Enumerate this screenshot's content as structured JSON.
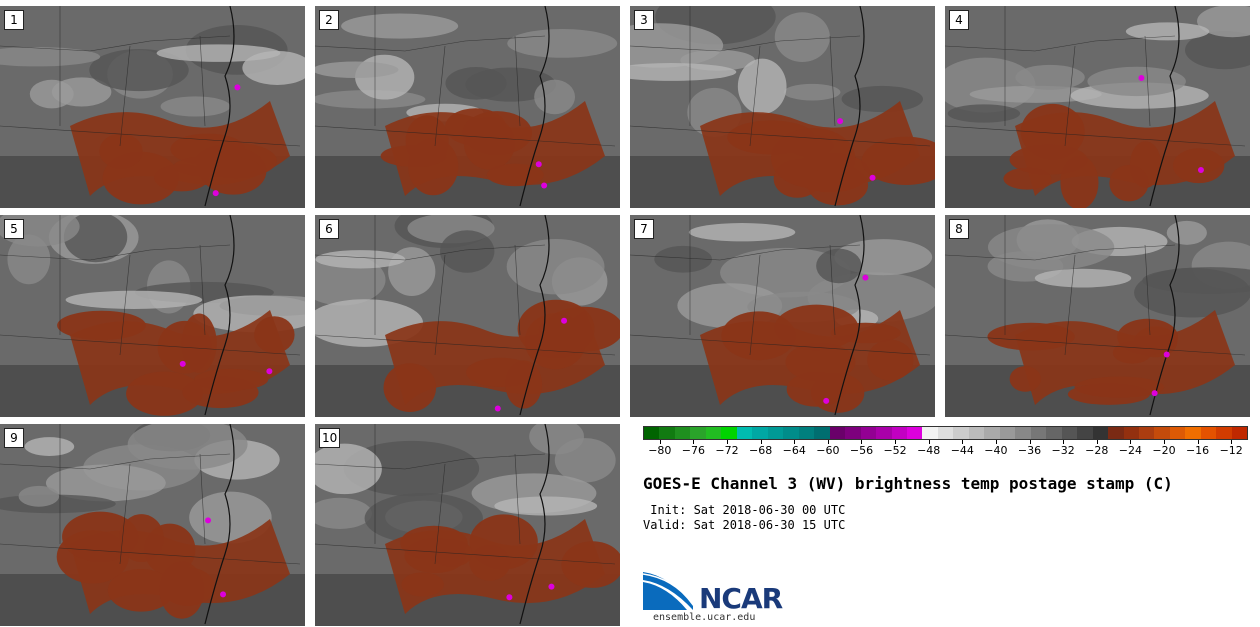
{
  "panels": [
    {
      "label": "1"
    },
    {
      "label": "2"
    },
    {
      "label": "3"
    },
    {
      "label": "4"
    },
    {
      "label": "5"
    },
    {
      "label": "6"
    },
    {
      "label": "7"
    },
    {
      "label": "8"
    },
    {
      "label": "9"
    },
    {
      "label": "10"
    }
  ],
  "colorbar": {
    "colors": [
      "#006400",
      "#117b11",
      "#1f8f1f",
      "#2aa42a",
      "#22bd22",
      "#00d400",
      "#00bcb0",
      "#00a8a4",
      "#009a96",
      "#008c8a",
      "#007f7e",
      "#006e70",
      "#6a006a",
      "#7d007d",
      "#930093",
      "#a900a9",
      "#c200c2",
      "#dd00dd",
      "#f2f2f2",
      "#dedede",
      "#cccccc",
      "#bbbbbb",
      "#aaaaaa",
      "#9a9a9a",
      "#888888",
      "#777777",
      "#666666",
      "#555555",
      "#444444",
      "#333333",
      "#7a2a14",
      "#93300f",
      "#ab3d10",
      "#c44b0b",
      "#dd5a05",
      "#f06e00",
      "#e45200",
      "#d23c00",
      "#c02800"
    ],
    "tick_labels": [
      "-80",
      "-76",
      "-72",
      "-68",
      "-64",
      "-60",
      "-56",
      "-52",
      "-48",
      "-44",
      "-40",
      "-36",
      "-32",
      "-28",
      "-24",
      "-20",
      "-16",
      "-12"
    ]
  },
  "title": "GOES-E Channel 3 (WV) brightness temp postage stamp (C)",
  "init": " Init: Sat 2018-06-30 00 UTC",
  "valid": "Valid: Sat 2018-06-30 15 UTC",
  "logo": {
    "text": "NCAR",
    "site": "ensemble.ucar.edu",
    "color": "#0a6bbd"
  }
}
